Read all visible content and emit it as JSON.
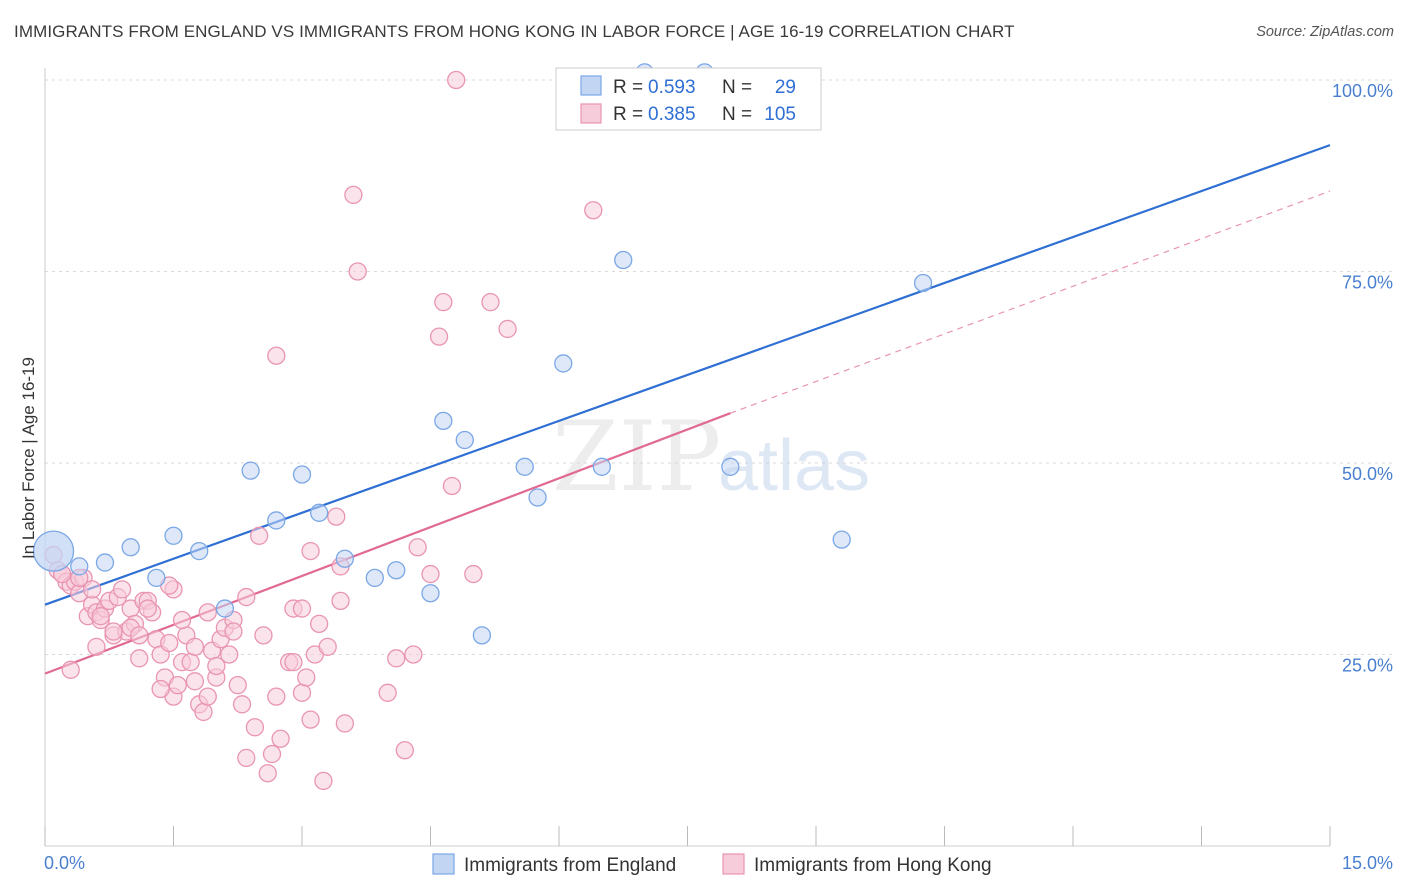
{
  "title": "IMMIGRANTS FROM ENGLAND VS IMMIGRANTS FROM HONG KONG IN LABOR FORCE | AGE 16-19 CORRELATION CHART",
  "source": "Source: ZipAtlas.com",
  "watermark": {
    "zip": "ZIP",
    "atlas": "atlas"
  },
  "legend": {
    "r_label": "R =",
    "n_label": "N =",
    "rows": [
      {
        "r": "0.593",
        "n": "29"
      },
      {
        "r": "0.385",
        "n": "105"
      }
    ]
  },
  "chart_data": {
    "type": "scatter",
    "ylabel": "In Labor Force | Age 16-19",
    "xlim": [
      0,
      15
    ],
    "ylim": [
      0,
      100
    ],
    "x_tick_labels": [
      "0.0%",
      "15.0%"
    ],
    "y_ticks": [
      25,
      50,
      75,
      100
    ],
    "y_tick_labels": [
      "25.0%",
      "50.0%",
      "75.0%",
      "100.0%"
    ],
    "grid": true,
    "legend_position": "top-center",
    "series": [
      {
        "name": "Immigrants from England",
        "color": "#7aa7e6",
        "fill": "#c2d6f4",
        "line_color": "#2f6fd4",
        "trend": {
          "x": [
            0,
            15
          ],
          "y": [
            31.5,
            91.5
          ]
        },
        "points": [
          [
            0.1,
            38.5
          ],
          [
            0.7,
            37
          ],
          [
            1.0,
            39
          ],
          [
            1.3,
            35
          ],
          [
            1.5,
            40.5
          ],
          [
            1.8,
            38.5
          ],
          [
            2.1,
            31
          ],
          [
            2.4,
            49
          ],
          [
            2.7,
            42.5
          ],
          [
            3.0,
            48.5
          ],
          [
            3.2,
            43.5
          ],
          [
            3.5,
            37.5
          ],
          [
            3.85,
            35
          ],
          [
            4.1,
            36
          ],
          [
            4.5,
            33
          ],
          [
            4.65,
            55.5
          ],
          [
            4.9,
            53
          ],
          [
            5.1,
            27.5
          ],
          [
            5.6,
            49.5
          ],
          [
            5.75,
            45.5
          ],
          [
            6.05,
            63
          ],
          [
            6.5,
            49.5
          ],
          [
            6.75,
            76.5
          ],
          [
            7.0,
            101
          ],
          [
            7.7,
            101
          ],
          [
            8.0,
            49.5
          ],
          [
            9.3,
            40
          ],
          [
            10.25,
            73.5
          ],
          [
            0.4,
            36.5
          ]
        ]
      },
      {
        "name": "Immigrants from Hong Kong",
        "color": "#e995b2",
        "fill": "#f7ccda",
        "line_color": "#e06a92",
        "trend": {
          "x": [
            0,
            8
          ],
          "y": [
            22.5,
            56.5
          ]
        },
        "trend_ext": {
          "x": [
            8,
            15
          ],
          "y": [
            56.5,
            85.5
          ]
        },
        "points": [
          [
            0.1,
            38
          ],
          [
            0.15,
            36
          ],
          [
            0.2,
            35.5
          ],
          [
            0.25,
            34.5
          ],
          [
            0.3,
            34
          ],
          [
            0.35,
            34.5
          ],
          [
            0.4,
            33
          ],
          [
            0.45,
            35
          ],
          [
            0.5,
            30
          ],
          [
            0.55,
            31.5
          ],
          [
            0.6,
            30.5
          ],
          [
            0.65,
            29.5
          ],
          [
            0.7,
            31
          ],
          [
            0.75,
            32
          ],
          [
            0.8,
            27.5
          ],
          [
            0.85,
            32.5
          ],
          [
            0.9,
            33.5
          ],
          [
            0.95,
            28
          ],
          [
            1.0,
            31
          ],
          [
            1.05,
            29
          ],
          [
            1.1,
            24.5
          ],
          [
            1.15,
            32
          ],
          [
            1.2,
            32
          ],
          [
            1.25,
            30.5
          ],
          [
            1.3,
            27
          ],
          [
            1.35,
            25
          ],
          [
            1.4,
            22
          ],
          [
            1.45,
            26.5
          ],
          [
            1.5,
            19.5
          ],
          [
            1.55,
            21
          ],
          [
            1.6,
            24
          ],
          [
            1.65,
            27.5
          ],
          [
            1.7,
            24
          ],
          [
            1.75,
            21.5
          ],
          [
            1.8,
            18.5
          ],
          [
            1.85,
            17.5
          ],
          [
            1.9,
            19.5
          ],
          [
            1.95,
            25.5
          ],
          [
            2.0,
            22
          ],
          [
            2.05,
            27
          ],
          [
            2.1,
            28.5
          ],
          [
            2.15,
            25
          ],
          [
            2.2,
            29.5
          ],
          [
            2.25,
            21
          ],
          [
            2.3,
            18.5
          ],
          [
            2.35,
            11.5
          ],
          [
            2.45,
            15.5
          ],
          [
            2.55,
            27.5
          ],
          [
            2.6,
            9.5
          ],
          [
            2.65,
            12
          ],
          [
            2.7,
            19.5
          ],
          [
            2.75,
            14
          ],
          [
            2.85,
            24
          ],
          [
            2.9,
            31
          ],
          [
            3.0,
            20
          ],
          [
            3.05,
            22
          ],
          [
            3.1,
            16.5
          ],
          [
            3.15,
            25
          ],
          [
            3.2,
            29
          ],
          [
            3.25,
            8.5
          ],
          [
            3.3,
            26
          ],
          [
            3.4,
            43
          ],
          [
            3.45,
            36.5
          ],
          [
            3.5,
            16
          ],
          [
            3.6,
            85
          ],
          [
            3.65,
            75
          ],
          [
            4.0,
            20
          ],
          [
            4.1,
            24.5
          ],
          [
            4.2,
            12.5
          ],
          [
            4.3,
            25
          ],
          [
            4.35,
            39
          ],
          [
            4.5,
            35.5
          ],
          [
            4.6,
            66.5
          ],
          [
            4.65,
            71
          ],
          [
            4.75,
            47
          ],
          [
            4.8,
            100
          ],
          [
            5.0,
            35.5
          ],
          [
            5.2,
            71
          ],
          [
            5.4,
            67.5
          ],
          [
            6.4,
            83
          ],
          [
            0.3,
            23
          ],
          [
            0.6,
            26
          ],
          [
            1.0,
            28.5
          ],
          [
            1.2,
            31
          ],
          [
            1.5,
            33.5
          ],
          [
            1.9,
            30.5
          ],
          [
            2.2,
            28
          ],
          [
            2.5,
            40.5
          ],
          [
            2.9,
            24
          ],
          [
            3.1,
            38.5
          ],
          [
            3.45,
            32
          ],
          [
            1.1,
            27.5
          ],
          [
            0.8,
            28
          ],
          [
            1.6,
            29.5
          ],
          [
            2.0,
            23.5
          ],
          [
            1.35,
            20.5
          ],
          [
            0.4,
            35
          ],
          [
            0.55,
            33.5
          ],
          [
            2.7,
            64
          ],
          [
            0.2,
            35.5
          ],
          [
            1.75,
            26
          ],
          [
            2.35,
            32.5
          ],
          [
            3.0,
            31
          ],
          [
            0.65,
            30
          ],
          [
            1.45,
            34
          ]
        ]
      }
    ]
  }
}
